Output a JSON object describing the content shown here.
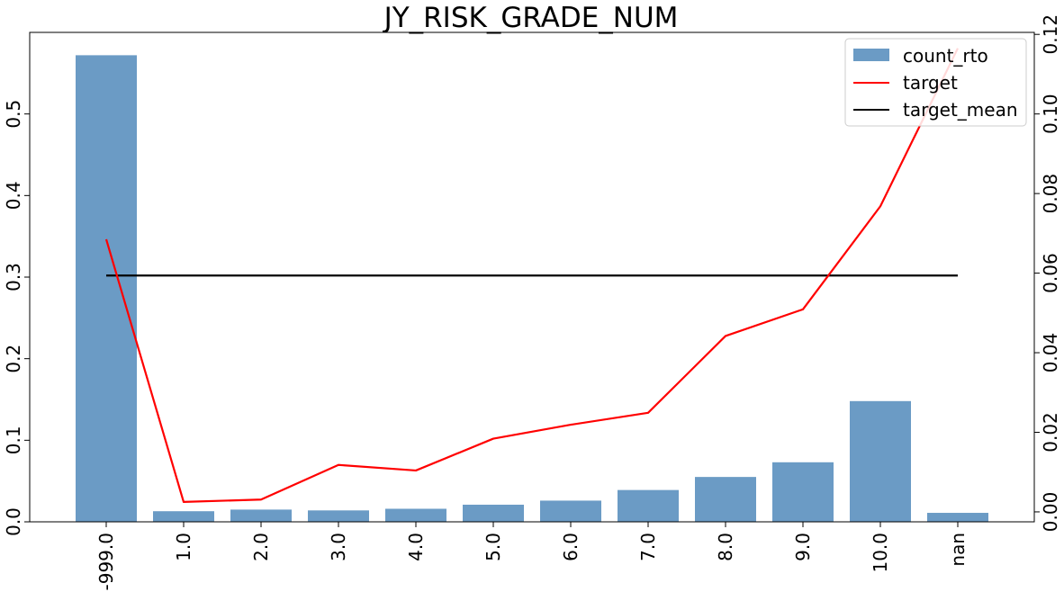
{
  "chart_data": {
    "type": "bar",
    "title": "JY_RISK_GRADE_NUM",
    "categories": [
      "-999.0",
      "1.0",
      "2.0",
      "3.0",
      "4.0",
      "5.0",
      "6.0",
      "7.0",
      "8.0",
      "9.0",
      "10.0",
      "nan"
    ],
    "series": [
      {
        "name": "count_rto",
        "type": "bar",
        "axis": "left",
        "color": "#6b9bc5",
        "values": [
          0.572,
          0.013,
          0.015,
          0.014,
          0.016,
          0.021,
          0.026,
          0.039,
          0.055,
          0.073,
          0.148,
          0.011
        ]
      },
      {
        "name": "target",
        "type": "line",
        "axis": "right",
        "color": "#ff0000",
        "values": [
          0.0685,
          0.0025,
          0.0031,
          0.0118,
          0.0104,
          0.0184,
          0.0219,
          0.0249,
          0.0442,
          0.0509,
          0.0768,
          0.1165
        ]
      },
      {
        "name": "target_mean",
        "type": "line",
        "axis": "right",
        "color": "#000000",
        "values": [
          0.0594,
          0.0594,
          0.0594,
          0.0594,
          0.0594,
          0.0594,
          0.0594,
          0.0594,
          0.0594,
          0.0594,
          0.0594,
          0.0594
        ]
      }
    ],
    "y_left": {
      "ylim": [
        0,
        0.6
      ],
      "ticks": [
        0.0,
        0.1,
        0.2,
        0.3,
        0.4,
        0.5
      ],
      "tick_labels": [
        "0.0",
        "0.1",
        "0.2",
        "0.3",
        "0.4",
        "0.5"
      ]
    },
    "y_right": {
      "ylim": [
        -0.0025,
        0.1205
      ],
      "ticks": [
        0.0,
        0.02,
        0.04,
        0.06,
        0.08,
        0.1,
        0.12
      ],
      "tick_labels": [
        "0.00",
        "0.02",
        "0.04",
        "0.06",
        "0.08",
        "0.10",
        "0.12"
      ]
    },
    "xlabel": "",
    "ylabel": "",
    "legend": {
      "position": "top-right",
      "entries": [
        "count_rto",
        "target",
        "target_mean"
      ]
    },
    "grid": false
  }
}
